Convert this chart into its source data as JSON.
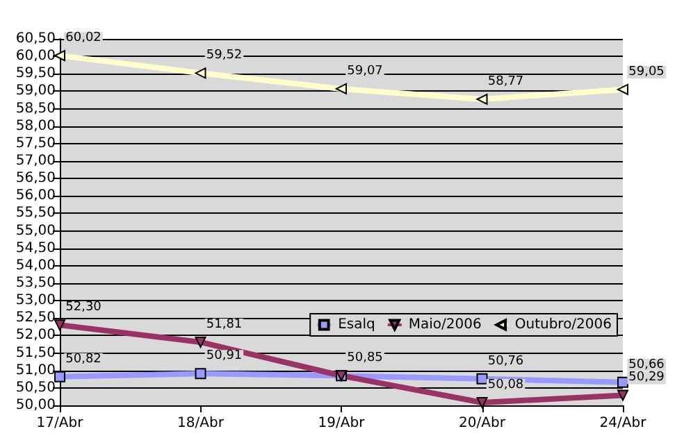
{
  "chart_data": {
    "type": "line",
    "categories": [
      "17/Abr",
      "18/Abr",
      "19/Abr",
      "20/Abr",
      "24/Abr"
    ],
    "series": [
      {
        "name": "Esalq",
        "color": "#9999ff",
        "marker": "square",
        "values": [
          50.82,
          50.91,
          50.85,
          50.76,
          50.66
        ],
        "value_labels": [
          "50,82",
          "50,91",
          "50,85",
          "50,76",
          "50,66"
        ]
      },
      {
        "name": "Maio/2006",
        "color": "#993366",
        "marker": "triangle-down",
        "values": [
          52.3,
          51.81,
          50.85,
          50.08,
          50.29
        ],
        "value_labels": [
          "52,30",
          "51,81",
          null,
          "50,08",
          "50,29"
        ]
      },
      {
        "name": "Outubro/2006",
        "color": "#ffffcc",
        "marker": "triangle-left",
        "values": [
          60.02,
          59.52,
          59.07,
          58.77,
          59.05
        ],
        "value_labels": [
          "60,02",
          "59,52",
          "59,07",
          "58,77",
          "59,05"
        ]
      }
    ],
    "ylim": [
      50,
      60.5
    ],
    "yticks": [
      {
        "value": 50,
        "label": "50,00"
      },
      {
        "value": 50.5,
        "label": "50,50"
      },
      {
        "value": 51,
        "label": "51,00"
      },
      {
        "value": 51.5,
        "label": "51,50"
      },
      {
        "value": 52,
        "label": "52,00"
      },
      {
        "value": 52.5,
        "label": "52,50"
      },
      {
        "value": 53,
        "label": "53,00"
      },
      {
        "value": 53.5,
        "label": "53,50"
      },
      {
        "value": 54,
        "label": "54,00"
      },
      {
        "value": 54.5,
        "label": "54,50"
      },
      {
        "value": 55,
        "label": "55,00"
      },
      {
        "value": 55.5,
        "label": "55,50"
      },
      {
        "value": 56,
        "label": "56,00"
      },
      {
        "value": 56.5,
        "label": "56,50"
      },
      {
        "value": 57,
        "label": "57,00"
      },
      {
        "value": 57.5,
        "label": "57,50"
      },
      {
        "value": 58,
        "label": "58,00"
      },
      {
        "value": 58.5,
        "label": "58,50"
      },
      {
        "value": 59,
        "label": "59,00"
      },
      {
        "value": 59.5,
        "label": "59,50"
      },
      {
        "value": 60,
        "label": "60,00"
      },
      {
        "value": 60.5,
        "label": "60,50"
      }
    ],
    "grid": "y",
    "legend": "right"
  }
}
